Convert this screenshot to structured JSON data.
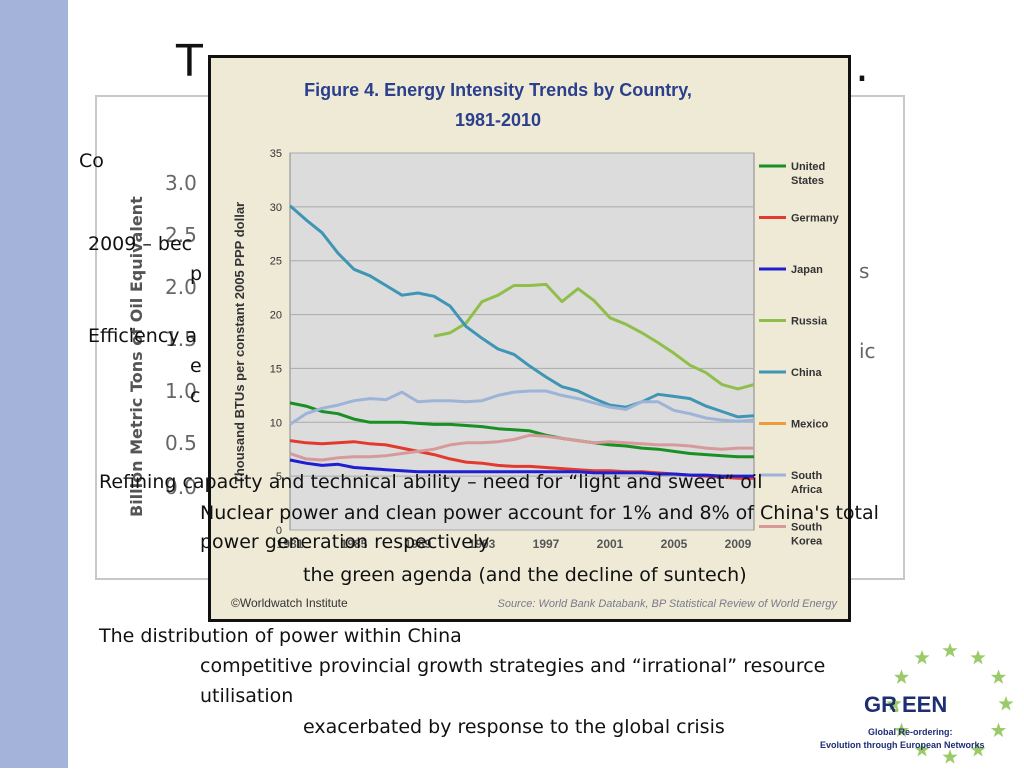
{
  "slide": {
    "title_fragment_left": "T",
    "title_fragment_right": "."
  },
  "background_chart": {
    "ylabel": "Billion Metric Tons of Oil Equivalent",
    "y_ticks": [
      "3.0",
      "2.5",
      "2.0",
      "1.5",
      "1.0",
      "0.5",
      "0.0"
    ],
    "right_fragments": [
      "s",
      "ic"
    ]
  },
  "bullets": {
    "b1": "Co",
    "b2": "2009 – bec",
    "b2b": "p",
    "b3": "Efficiency a",
    "b3b": "e",
    "b3c": "c",
    "b4": "Refining capacity and technical ability – need for “light and sweet” oil",
    "b5": "Nuclear power and clean power account for 1% and 8% of China's total",
    "b5b": "power generation respectively",
    "b6": "the green agenda (and the decline of suntech)",
    "b7": "The distribution of power within China",
    "b8": "competitive provincial growth strategies and “irrational” resource",
    "b8b": "utilisation",
    "b9": "exacerbated by response to the global crisis"
  },
  "logo": {
    "name_left": "GR",
    "name_sep": ":",
    "name_right": "EEN",
    "line1": "Global Re-ordering:",
    "line2": "Evolution through European Networks"
  },
  "colors": {
    "sidebar": "#a4b3da",
    "figure_bg": "#eeead6",
    "plot_bg": "#dcdcdc",
    "logo_green": "#9acb68"
  },
  "chart_data": {
    "type": "line",
    "title": "Figure 4.  Energy Intensity Trends by Country, 1981-2010",
    "title_line1": "Figure 4.  Energy Intensity Trends by Country,",
    "title_line2": "1981-2010",
    "ylabel": "Thousand BTUs per constant 2005 PPP dollar",
    "xlabel": "",
    "ylim": [
      0,
      35
    ],
    "xlim": [
      1981,
      2010
    ],
    "y_ticks": [
      0,
      5,
      10,
      15,
      20,
      25,
      30,
      35
    ],
    "x_ticks": [
      1981,
      1985,
      1989,
      1993,
      1997,
      2001,
      2005,
      2009
    ],
    "grid": true,
    "legend_position": "right",
    "footer_left": "©Worldwatch Institute",
    "footer_right": "Source: World Bank Databank, BP Statistical Review of World Energy",
    "series": [
      {
        "name": "United States",
        "color": "#1a8f24",
        "x": [
          1981,
          1982,
          1983,
          1984,
          1985,
          1986,
          1987,
          1988,
          1989,
          1990,
          1991,
          1992,
          1993,
          1994,
          1995,
          1996,
          1997,
          1998,
          1999,
          2000,
          2001,
          2002,
          2003,
          2004,
          2005,
          2006,
          2007,
          2008,
          2009,
          2010
        ],
        "y": [
          11.8,
          11.5,
          11.0,
          10.8,
          10.3,
          10.0,
          10.0,
          10.0,
          9.9,
          9.8,
          9.8,
          9.7,
          9.6,
          9.4,
          9.3,
          9.2,
          8.8,
          8.5,
          8.3,
          8.1,
          7.9,
          7.8,
          7.6,
          7.5,
          7.3,
          7.1,
          7.0,
          6.9,
          6.8,
          6.8
        ]
      },
      {
        "name": "Germany",
        "color": "#e23a2e",
        "x": [
          1981,
          1982,
          1983,
          1984,
          1985,
          1986,
          1987,
          1988,
          1989,
          1990,
          1991,
          1992,
          1993,
          1994,
          1995,
          1996,
          1997,
          1998,
          1999,
          2000,
          2001,
          2002,
          2003,
          2004,
          2005,
          2006,
          2007,
          2008,
          2009,
          2010
        ],
        "y": [
          8.3,
          8.1,
          8.0,
          8.1,
          8.2,
          8.0,
          7.9,
          7.6,
          7.3,
          7.0,
          6.6,
          6.3,
          6.2,
          6.0,
          5.9,
          5.9,
          5.8,
          5.7,
          5.6,
          5.5,
          5.5,
          5.4,
          5.4,
          5.3,
          5.2,
          5.1,
          5.0,
          4.9,
          4.8,
          4.8
        ]
      },
      {
        "name": "Japan",
        "color": "#1d1fd0",
        "x": [
          1981,
          1982,
          1983,
          1984,
          1985,
          1986,
          1987,
          1988,
          1989,
          1990,
          1991,
          1992,
          1993,
          1994,
          1995,
          1996,
          1997,
          1998,
          1999,
          2000,
          2001,
          2002,
          2003,
          2004,
          2005,
          2006,
          2007,
          2008,
          2009,
          2010
        ],
        "y": [
          6.5,
          6.2,
          6.0,
          6.1,
          5.8,
          5.7,
          5.6,
          5.5,
          5.4,
          5.4,
          5.4,
          5.4,
          5.4,
          5.4,
          5.4,
          5.4,
          5.4,
          5.4,
          5.4,
          5.3,
          5.3,
          5.3,
          5.3,
          5.2,
          5.2,
          5.1,
          5.1,
          5.0,
          5.0,
          5.0
        ]
      },
      {
        "name": "Russia",
        "color": "#8fbf4a",
        "x": [
          1990,
          1991,
          1992,
          1993,
          1994,
          1995,
          1996,
          1997,
          1998,
          1999,
          2000,
          2001,
          2002,
          2003,
          2004,
          2005,
          2006,
          2007,
          2008,
          2009,
          2010
        ],
        "y": [
          18.0,
          18.3,
          19.2,
          21.2,
          21.8,
          22.7,
          22.7,
          22.8,
          21.2,
          22.4,
          21.3,
          19.7,
          19.1,
          18.3,
          17.4,
          16.4,
          15.3,
          14.6,
          13.5,
          13.1,
          13.5
        ]
      },
      {
        "name": "China",
        "color": "#3f96b4",
        "x": [
          1981,
          1982,
          1983,
          1984,
          1985,
          1986,
          1987,
          1988,
          1989,
          1990,
          1991,
          1992,
          1993,
          1994,
          1995,
          1996,
          1997,
          1998,
          1999,
          2000,
          2001,
          2002,
          2003,
          2004,
          2005,
          2006,
          2007,
          2008,
          2009,
          2010
        ],
        "y": [
          30.1,
          28.8,
          27.6,
          25.7,
          24.2,
          23.6,
          22.7,
          21.8,
          22.0,
          21.7,
          20.8,
          18.9,
          17.8,
          16.8,
          16.3,
          15.2,
          14.2,
          13.3,
          12.9,
          12.2,
          11.6,
          11.4,
          11.9,
          12.6,
          12.4,
          12.2,
          11.5,
          11.0,
          10.5,
          10.6
        ]
      },
      {
        "name": "Mexico",
        "color": "#ef9a3c",
        "x": [],
        "y": []
      },
      {
        "name": "South Africa",
        "color": "#9db4d8",
        "x": [
          1981,
          1982,
          1983,
          1984,
          1985,
          1986,
          1987,
          1988,
          1989,
          1990,
          1991,
          1992,
          1993,
          1994,
          1995,
          1996,
          1997,
          1998,
          1999,
          2000,
          2001,
          2002,
          2003,
          2004,
          2005,
          2006,
          2007,
          2008,
          2009,
          2010
        ],
        "y": [
          9.8,
          10.8,
          11.3,
          11.6,
          12.0,
          12.2,
          12.1,
          12.8,
          11.9,
          12.0,
          12.0,
          11.9,
          12.0,
          12.5,
          12.8,
          12.9,
          12.9,
          12.5,
          12.2,
          11.8,
          11.4,
          11.2,
          11.9,
          11.9,
          11.1,
          10.8,
          10.4,
          10.2,
          10.1,
          10.2
        ]
      },
      {
        "name": "South Korea",
        "color": "#d69a9a",
        "x": [
          1981,
          1982,
          1983,
          1984,
          1985,
          1986,
          1987,
          1988,
          1989,
          1990,
          1991,
          1992,
          1993,
          1994,
          1995,
          1996,
          1997,
          1998,
          1999,
          2000,
          2001,
          2002,
          2003,
          2004,
          2005,
          2006,
          2007,
          2008,
          2009,
          2010
        ],
        "y": [
          7.1,
          6.6,
          6.5,
          6.7,
          6.8,
          6.8,
          6.9,
          7.1,
          7.3,
          7.5,
          7.9,
          8.1,
          8.1,
          8.2,
          8.4,
          8.8,
          8.7,
          8.5,
          8.3,
          8.1,
          8.2,
          8.1,
          8.0,
          7.9,
          7.9,
          7.8,
          7.6,
          7.5,
          7.6,
          7.6
        ]
      }
    ]
  }
}
